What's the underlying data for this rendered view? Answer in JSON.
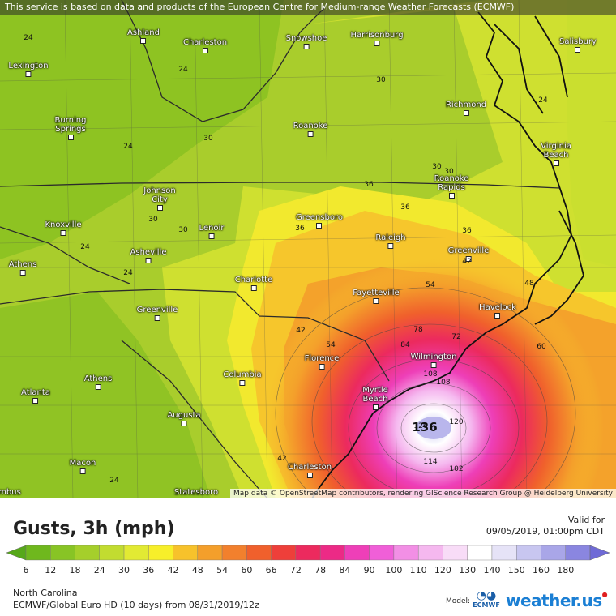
{
  "notice": "This service is based on data and products of the European Centre for Medium-range Weather Forecasts (ECMWF)",
  "attribution": "Map data © OpenStreetMap contributors, rendering GIScience Research Group @ Heidelberg University",
  "cities": [
    {
      "name": "Ashland"
    },
    {
      "name": "Charleston"
    },
    {
      "name": "Snowshoe"
    },
    {
      "name": "Harrisonburg"
    },
    {
      "name": "Salisbury"
    },
    {
      "name": "Lexington"
    },
    {
      "name": "Richmond"
    },
    {
      "name": "Burning Springs"
    },
    {
      "name": "Roanoke"
    },
    {
      "name": "Virginia Beach"
    },
    {
      "name": "Johnson City"
    },
    {
      "name": "Roanoke Rapids"
    },
    {
      "name": "Greensboro"
    },
    {
      "name": "Knoxville"
    },
    {
      "name": "Lenoir"
    },
    {
      "name": "Raleigh"
    },
    {
      "name": "Asheville"
    },
    {
      "name": "Greenville"
    },
    {
      "name": "Athens"
    },
    {
      "name": "Charlotte"
    },
    {
      "name": "Fayetteville"
    },
    {
      "name": "Havelock"
    },
    {
      "name": "Greenville"
    },
    {
      "name": "Wilmington"
    },
    {
      "name": "Florence"
    },
    {
      "name": "Athens"
    },
    {
      "name": "Columbia"
    },
    {
      "name": "Atlanta"
    },
    {
      "name": "Myrtle Beach"
    },
    {
      "name": "Augusta"
    },
    {
      "name": "Macon"
    },
    {
      "name": "Charleston"
    },
    {
      "name": "Statesboro"
    },
    {
      "name": "mbus"
    }
  ],
  "contour_labels": [
    "24",
    "24",
    "30",
    "24",
    "30",
    "24",
    "24",
    "30",
    "30",
    "36",
    "36",
    "36",
    "30",
    "30",
    "36",
    "42",
    "48",
    "54",
    "24",
    "60",
    "42",
    "78",
    "72",
    "54",
    "84",
    "108",
    "120",
    "42",
    "108",
    "102",
    "114",
    "24",
    "126",
    "136"
  ],
  "footer": {
    "title": "Gusts, 3h (mph)",
    "valid_label": "Valid for",
    "valid_time": "09/05/2019, 01:00pm CDT",
    "region": "North Carolina",
    "model_info": "ECMWF/Global Euro HD (10 days) from 08/31/2019/12z",
    "model_label": "Model:",
    "ecmwf_logo_text": "ECMWF",
    "brand": "weather.us"
  },
  "legend": {
    "ticks": [
      "6",
      "12",
      "18",
      "24",
      "30",
      "36",
      "42",
      "48",
      "54",
      "60",
      "66",
      "72",
      "78",
      "84",
      "90",
      "100",
      "110",
      "120",
      "130",
      "140",
      "150",
      "160",
      "180"
    ],
    "colors": [
      "#56a81a",
      "#6fb81d",
      "#88c425",
      "#a5cf2b",
      "#c2dc30",
      "#e2ea33",
      "#f7ef2a",
      "#f7c22b",
      "#f49f2b",
      "#f2802d",
      "#f0602c",
      "#ee3f3a",
      "#ec2a5e",
      "#ec2a86",
      "#ee3fb8",
      "#f05fd8",
      "#f28fe5",
      "#f5b8ef",
      "#f8dcf7",
      "#ffffff",
      "#e6e3f7",
      "#c8c6f0",
      "#a9a6e8",
      "#8a86e0",
      "#6f6ad6"
    ]
  }
}
